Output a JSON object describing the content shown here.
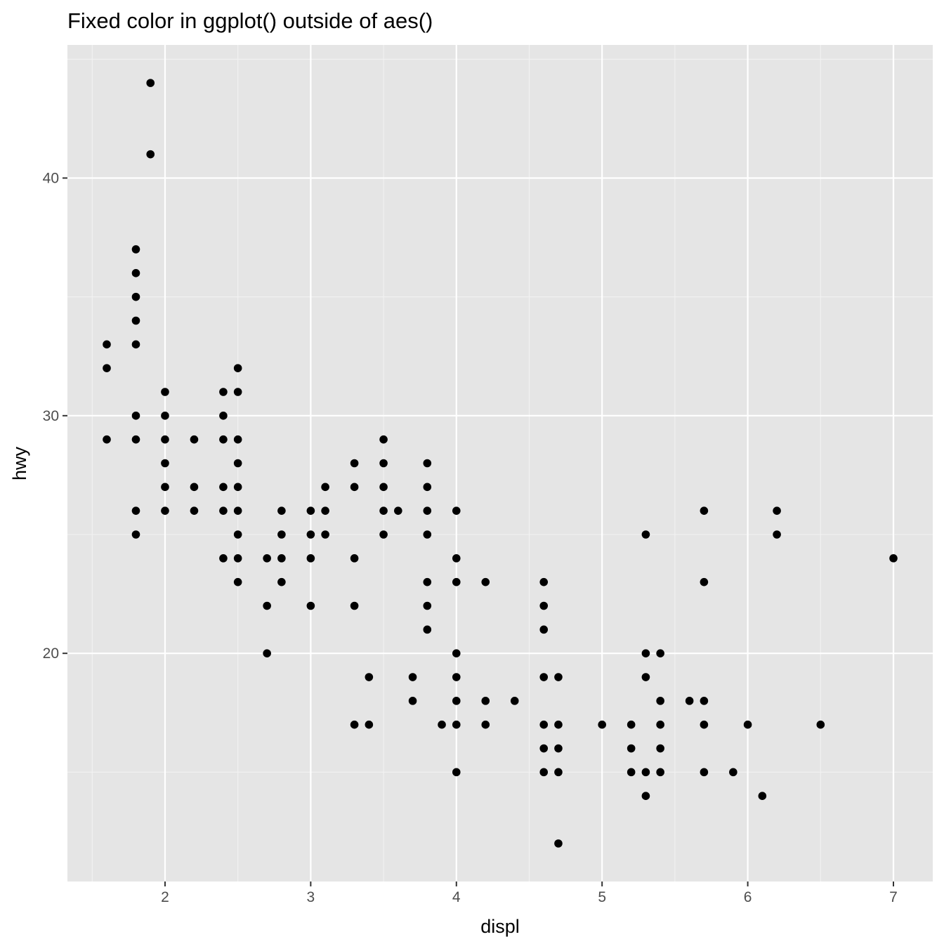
{
  "chart_data": {
    "type": "scatter",
    "title": "Fixed color in ggplot() outside of aes()",
    "xlabel": "displ",
    "ylabel": "hwy",
    "xlim": [
      1.33,
      7.27
    ],
    "ylim": [
      10.4,
      45.6
    ],
    "x_ticks": [
      2,
      3,
      4,
      5,
      6,
      7
    ],
    "y_ticks": [
      20,
      30,
      40
    ],
    "x_minor_ticks": [
      1.5,
      2.5,
      3.5,
      4.5,
      5.5,
      6.5
    ],
    "y_minor_ticks": [
      15,
      25,
      35,
      45
    ],
    "grid": true,
    "legend": "none",
    "colors": {
      "panel_background": "#e5e5e5",
      "grid_major": "#ffffff",
      "grid_minor": "#f2f2f2",
      "point": "#000000",
      "tick_text": "#4d4d4d",
      "tick_mark": "#333333"
    },
    "points": [
      [
        1.6,
        33
      ],
      [
        1.6,
        32
      ],
      [
        1.6,
        29
      ],
      [
        1.8,
        37
      ],
      [
        1.8,
        36
      ],
      [
        1.8,
        35
      ],
      [
        1.8,
        34
      ],
      [
        1.8,
        33
      ],
      [
        1.8,
        30
      ],
      [
        1.8,
        29
      ],
      [
        1.8,
        26
      ],
      [
        1.8,
        25
      ],
      [
        1.9,
        44
      ],
      [
        1.9,
        41
      ],
      [
        2.0,
        31
      ],
      [
        2.0,
        30
      ],
      [
        2.0,
        29
      ],
      [
        2.0,
        28
      ],
      [
        2.0,
        27
      ],
      [
        2.0,
        26
      ],
      [
        2.2,
        29
      ],
      [
        2.2,
        27
      ],
      [
        2.2,
        26
      ],
      [
        2.4,
        31
      ],
      [
        2.4,
        30
      ],
      [
        2.4,
        29
      ],
      [
        2.4,
        27
      ],
      [
        2.4,
        26
      ],
      [
        2.4,
        24
      ],
      [
        2.5,
        32
      ],
      [
        2.5,
        31
      ],
      [
        2.5,
        29
      ],
      [
        2.5,
        28
      ],
      [
        2.5,
        27
      ],
      [
        2.5,
        26
      ],
      [
        2.5,
        25
      ],
      [
        2.5,
        24
      ],
      [
        2.5,
        23
      ],
      [
        2.7,
        24
      ],
      [
        2.7,
        22
      ],
      [
        2.7,
        20
      ],
      [
        2.8,
        26
      ],
      [
        2.8,
        25
      ],
      [
        2.8,
        24
      ],
      [
        2.8,
        23
      ],
      [
        3.0,
        26
      ],
      [
        3.0,
        25
      ],
      [
        3.0,
        24
      ],
      [
        3.0,
        22
      ],
      [
        3.1,
        27
      ],
      [
        3.1,
        26
      ],
      [
        3.1,
        25
      ],
      [
        3.3,
        28
      ],
      [
        3.3,
        27
      ],
      [
        3.3,
        24
      ],
      [
        3.3,
        22
      ],
      [
        3.3,
        17
      ],
      [
        3.4,
        19
      ],
      [
        3.4,
        17
      ],
      [
        3.5,
        29
      ],
      [
        3.5,
        28
      ],
      [
        3.5,
        27
      ],
      [
        3.5,
        26
      ],
      [
        3.5,
        25
      ],
      [
        3.6,
        26
      ],
      [
        3.7,
        19
      ],
      [
        3.7,
        18
      ],
      [
        3.8,
        28
      ],
      [
        3.8,
        27
      ],
      [
        3.8,
        26
      ],
      [
        3.8,
        25
      ],
      [
        3.8,
        23
      ],
      [
        3.8,
        22
      ],
      [
        3.8,
        21
      ],
      [
        3.9,
        17
      ],
      [
        4.0,
        26
      ],
      [
        4.0,
        24
      ],
      [
        4.0,
        23
      ],
      [
        4.0,
        20
      ],
      [
        4.0,
        19
      ],
      [
        4.0,
        18
      ],
      [
        4.0,
        17
      ],
      [
        4.0,
        15
      ],
      [
        4.2,
        23
      ],
      [
        4.2,
        18
      ],
      [
        4.2,
        17
      ],
      [
        4.4,
        18
      ],
      [
        4.6,
        23
      ],
      [
        4.6,
        22
      ],
      [
        4.6,
        21
      ],
      [
        4.6,
        19
      ],
      [
        4.6,
        17
      ],
      [
        4.6,
        16
      ],
      [
        4.6,
        15
      ],
      [
        4.7,
        19
      ],
      [
        4.7,
        17
      ],
      [
        4.7,
        16
      ],
      [
        4.7,
        15
      ],
      [
        4.7,
        12
      ],
      [
        5.0,
        17
      ],
      [
        5.2,
        17
      ],
      [
        5.2,
        16
      ],
      [
        5.2,
        15
      ],
      [
        5.3,
        25
      ],
      [
        5.3,
        20
      ],
      [
        5.3,
        19
      ],
      [
        5.3,
        15
      ],
      [
        5.3,
        14
      ],
      [
        5.4,
        20
      ],
      [
        5.4,
        18
      ],
      [
        5.4,
        17
      ],
      [
        5.4,
        16
      ],
      [
        5.4,
        15
      ],
      [
        5.6,
        18
      ],
      [
        5.7,
        26
      ],
      [
        5.7,
        23
      ],
      [
        5.7,
        18
      ],
      [
        5.7,
        17
      ],
      [
        5.7,
        15
      ],
      [
        5.9,
        15
      ],
      [
        6.0,
        17
      ],
      [
        6.1,
        14
      ],
      [
        6.2,
        26
      ],
      [
        6.2,
        25
      ],
      [
        6.5,
        17
      ],
      [
        7.0,
        24
      ]
    ]
  }
}
